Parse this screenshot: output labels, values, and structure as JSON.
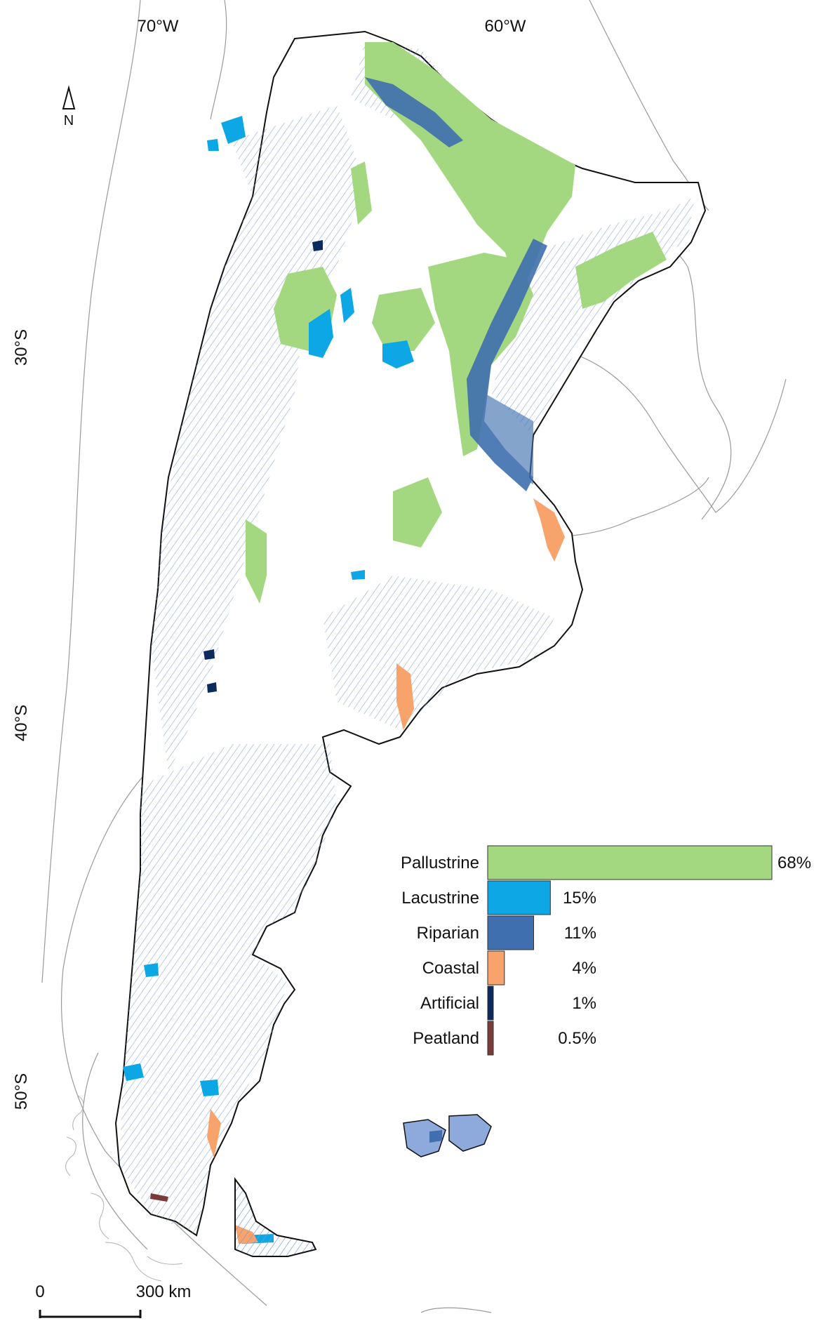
{
  "graticule": {
    "lon_labels": [
      "70°W",
      "60°W"
    ],
    "lat_labels": [
      "30°S",
      "40°S",
      "50°S"
    ]
  },
  "north_arrow": {
    "label": "N"
  },
  "scale_bar": {
    "start_label": "0",
    "end_label": "300 km"
  },
  "colors": {
    "pallustrine": "#a3d881",
    "lacustrine": "#0ea7e6",
    "riparian": "#3f6faf",
    "coastal": "#f7a36b",
    "artificial": "#0b2a5e",
    "peatland": "#7a3b3b",
    "rivers": "#6e90cc",
    "outline": "#111111",
    "neighbors": "#9a9a9a"
  },
  "chart_data": {
    "type": "bar",
    "orientation": "horizontal",
    "categories": [
      "Pallustrine",
      "Lacustrine",
      "Riparian",
      "Coastal",
      "Artificial",
      "Peatland"
    ],
    "values": [
      68,
      15,
      11,
      4,
      1,
      0.5
    ],
    "value_labels": [
      "68%",
      "15%",
      "11%",
      "4%",
      "1%",
      "0.5%"
    ],
    "colors": [
      "#a3d881",
      "#0ea7e6",
      "#3f6faf",
      "#f7a36b",
      "#0b2a5e",
      "#7a3b3b"
    ],
    "title": "",
    "xlabel": "",
    "ylabel": "",
    "xlim": [
      0,
      68
    ]
  }
}
